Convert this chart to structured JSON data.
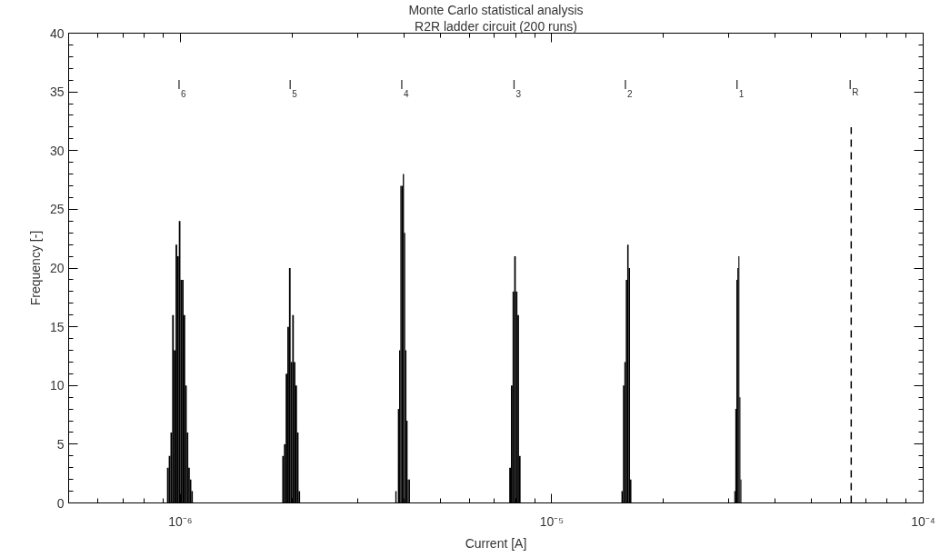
{
  "chart_data": {
    "type": "histogram",
    "title": "Monte Carlo statistical analysis",
    "subtitle": "R2R ladder circuit (200 runs)",
    "xlabel": "Current [A]",
    "ylabel": "Frequency [-]",
    "log": "x",
    "grid": false,
    "xlim": [
      5e-07,
      0.0001
    ],
    "ylim": [
      0,
      40
    ],
    "xticks": [
      {
        "value": 6e-07,
        "label": null
      },
      {
        "value": 7e-07,
        "label": null
      },
      {
        "value": 8e-07,
        "label": null
      },
      {
        "value": 9e-07,
        "label": null
      },
      {
        "value": 1e-06,
        "label": "10⁻⁶"
      },
      {
        "value": 2e-06,
        "label": null
      },
      {
        "value": 3e-06,
        "label": null
      },
      {
        "value": 4e-06,
        "label": null
      },
      {
        "value": 5e-06,
        "label": null
      },
      {
        "value": 6e-06,
        "label": null
      },
      {
        "value": 7e-06,
        "label": null
      },
      {
        "value": 8e-06,
        "label": null
      },
      {
        "value": 9e-06,
        "label": null
      },
      {
        "value": 1e-05,
        "label": "10⁻⁵"
      },
      {
        "value": 2e-05,
        "label": null
      },
      {
        "value": 3e-05,
        "label": null
      },
      {
        "value": 4e-05,
        "label": null
      },
      {
        "value": 5e-05,
        "label": null
      },
      {
        "value": 6e-05,
        "label": null
      },
      {
        "value": 7e-05,
        "label": null
      },
      {
        "value": 8e-05,
        "label": null
      },
      {
        "value": 9e-05,
        "label": null
      },
      {
        "value": 0.0001,
        "label": "10⁻⁴"
      }
    ],
    "yticks": [
      0,
      {
        "value": 1,
        "label": null
      },
      {
        "value": 2,
        "label": null
      },
      {
        "value": 3,
        "label": null
      },
      {
        "value": 4,
        "label": null
      },
      5,
      {
        "value": 6,
        "label": null
      },
      {
        "value": 7,
        "label": null
      },
      {
        "value": 8,
        "label": null
      },
      {
        "value": 9,
        "label": null
      },
      10,
      {
        "value": 11,
        "label": null
      },
      {
        "value": 12,
        "label": null
      },
      {
        "value": 13,
        "label": null
      },
      {
        "value": 14,
        "label": null
      },
      15,
      {
        "value": 16,
        "label": null
      },
      {
        "value": 17,
        "label": null
      },
      {
        "value": 18,
        "label": null
      },
      {
        "value": 19,
        "label": null
      },
      20,
      {
        "value": 21,
        "label": null
      },
      {
        "value": 22,
        "label": null
      },
      {
        "value": 23,
        "label": null
      },
      {
        "value": 24,
        "label": null
      },
      25,
      {
        "value": 26,
        "label": null
      },
      {
        "value": 27,
        "label": null
      },
      {
        "value": 28,
        "label": null
      },
      {
        "value": 29,
        "label": null
      },
      30,
      {
        "value": 31,
        "label": null
      },
      {
        "value": 32,
        "label": null
      },
      {
        "value": 33,
        "label": null
      },
      {
        "value": 34,
        "label": null
      },
      35,
      {
        "value": 36,
        "label": null
      },
      {
        "value": 37,
        "label": null
      },
      {
        "value": 38,
        "label": null
      },
      {
        "value": 39,
        "label": null
      },
      40
    ],
    "series": [
      {
        "color": "#000000",
        "bins": [
          9.2e-07,
          9.3e-07,
          9.4e-07,
          9.5e-07,
          9.6e-07,
          9.7e-07,
          9.8e-07,
          9.9e-07,
          1e-06,
          1.01e-06,
          1.02e-06,
          1.03e-06,
          1.04e-06,
          1.05e-06,
          1.06e-06,
          1.07e-06,
          1.08e-06
        ],
        "values": [
          3,
          4,
          6,
          16,
          13,
          22,
          21,
          24,
          19,
          19,
          16,
          10,
          6,
          3,
          2,
          1
        ]
      },
      {
        "color": "#000000",
        "bins": [
          1.88e-06,
          1.9e-06,
          1.92e-06,
          1.94e-06,
          1.96e-06,
          1.98e-06,
          2e-06,
          2.02e-06,
          2.04e-06,
          2.06e-06,
          2.08e-06,
          2.1e-06
        ],
        "values": [
          4,
          5,
          11,
          15,
          20,
          12,
          16,
          12,
          10,
          6,
          1
        ]
      },
      {
        "color": "#000000",
        "bins": [
          3.79e-06,
          3.82e-06,
          3.85e-06,
          3.88e-06,
          3.91e-06,
          3.94e-06,
          3.97e-06,
          4e-06,
          4.03e-06,
          4.06e-06,
          4.09e-06,
          4.12e-06,
          4.15e-06
        ],
        "values": [
          1,
          0,
          8,
          13,
          27,
          27,
          28,
          23,
          13,
          7,
          2,
          2
        ]
      },
      {
        "color": "#000000",
        "bins": [
          7.68e-06,
          7.76e-06,
          7.84e-06,
          7.92e-06,
          8e-06,
          8.08e-06,
          8.16e-06,
          8.24e-06
        ],
        "values": [
          3,
          10,
          18,
          21,
          18,
          16,
          4
        ]
      },
      {
        "color": "#000000",
        "bins": [
          1.54e-05,
          1.554e-05,
          1.568e-05,
          1.582e-05,
          1.596e-05,
          1.61e-05,
          1.624e-05,
          1.638e-05
        ],
        "values": [
          1,
          10,
          12,
          19,
          22,
          20,
          2
        ]
      },
      {
        "color": "#000000",
        "bins": [
          3.1e-05,
          3.12e-05,
          3.14e-05,
          3.16e-05,
          3.18e-05,
          3.2e-05,
          3.22e-05,
          3.24e-05
        ],
        "values": [
          1,
          8,
          19,
          20,
          21,
          9,
          2
        ]
      },
      {
        "type": "line",
        "color": "#000000",
        "line_style": "dashed",
        "x": [
          6.4e-05,
          6.4e-05
        ],
        "values": [
          0,
          32
        ]
      }
    ],
    "annotations": [
      "I$_{6}$",
      "I$_{5}$",
      "I$_{4}$",
      "I$_{3}$",
      "I$_{2}$",
      "I$_{1}$",
      "I$_{R}$"
    ]
  }
}
